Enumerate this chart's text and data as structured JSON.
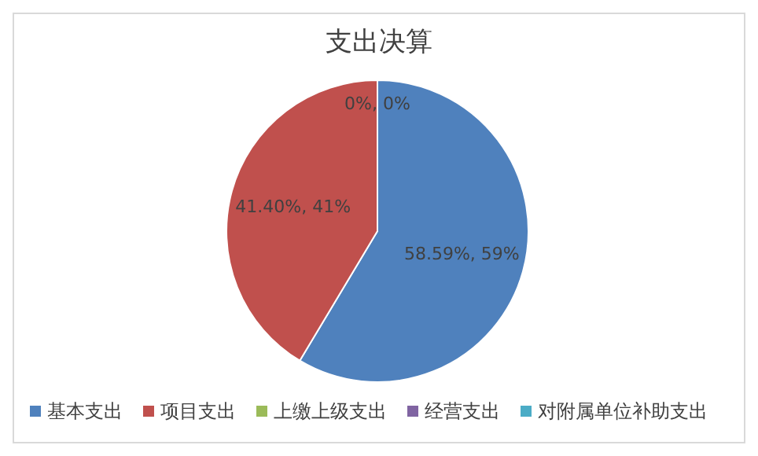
{
  "chart_data": {
    "type": "pie",
    "title": "支出决算",
    "categories": [
      "基本支出",
      "项目支出",
      "上缴上级支出",
      "经营支出",
      "对附属单位补助支出"
    ],
    "values": [
      58.59,
      41.4,
      0,
      0,
      0
    ],
    "colors": [
      "#4f81bd",
      "#c0504d",
      "#9bbb59",
      "#8064a2",
      "#4bacc6"
    ],
    "value_labels": [
      "58.59%, 59%",
      "41.40%, 41%",
      "0%, 0%",
      null,
      null
    ],
    "legend": "bottom"
  }
}
